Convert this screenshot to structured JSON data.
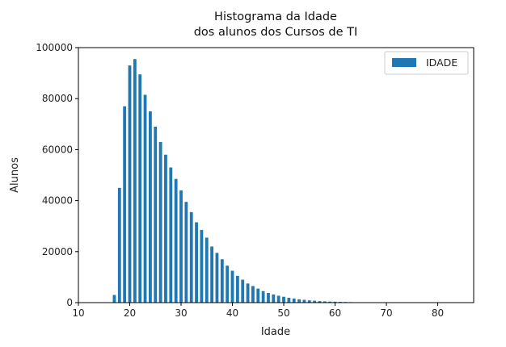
{
  "chart_data": {
    "type": "bar",
    "title_lines": [
      "Histograma da Idade",
      "dos alunos dos Cursos de TI"
    ],
    "xlabel": "Idade",
    "ylabel": "Alunos",
    "xlim": [
      10,
      87
    ],
    "ylim": [
      0,
      100000
    ],
    "x_ticks": [
      10,
      20,
      30,
      40,
      50,
      60,
      70,
      80
    ],
    "y_ticks": [
      0,
      20000,
      40000,
      60000,
      80000,
      100000
    ],
    "x_tick_labels": [
      "10",
      "20",
      "30",
      "40",
      "50",
      "60",
      "70",
      "80"
    ],
    "y_tick_labels": [
      "0",
      "20000",
      "40000",
      "60000",
      "80000",
      "100000"
    ],
    "grid": false,
    "legend_position": "top-right",
    "series": [
      {
        "name": "IDADE",
        "color": "#1f77b4",
        "bin_width": 0.6,
        "x": [
          17,
          18,
          19,
          20,
          21,
          22,
          23,
          24,
          25,
          26,
          27,
          28,
          29,
          30,
          31,
          32,
          33,
          34,
          35,
          36,
          37,
          38,
          39,
          40,
          41,
          42,
          43,
          44,
          45,
          46,
          47,
          48,
          49,
          50,
          51,
          52,
          53,
          54,
          55,
          56,
          57,
          58,
          59,
          60,
          61,
          62,
          63,
          64,
          65,
          66,
          67,
          68,
          69,
          70
        ],
        "values": [
          3000,
          45000,
          77000,
          93000,
          95500,
          89500,
          81500,
          75000,
          69000,
          63000,
          58000,
          53000,
          48500,
          44000,
          39500,
          35500,
          31500,
          28500,
          25500,
          22000,
          19500,
          17000,
          14500,
          12500,
          10500,
          9000,
          7500,
          6500,
          5500,
          4500,
          3800,
          3200,
          2700,
          2300,
          1900,
          1600,
          1300,
          1100,
          900,
          750,
          600,
          500,
          400,
          350,
          300,
          250,
          200,
          150,
          120,
          100,
          80,
          60,
          50,
          40
        ]
      }
    ]
  }
}
